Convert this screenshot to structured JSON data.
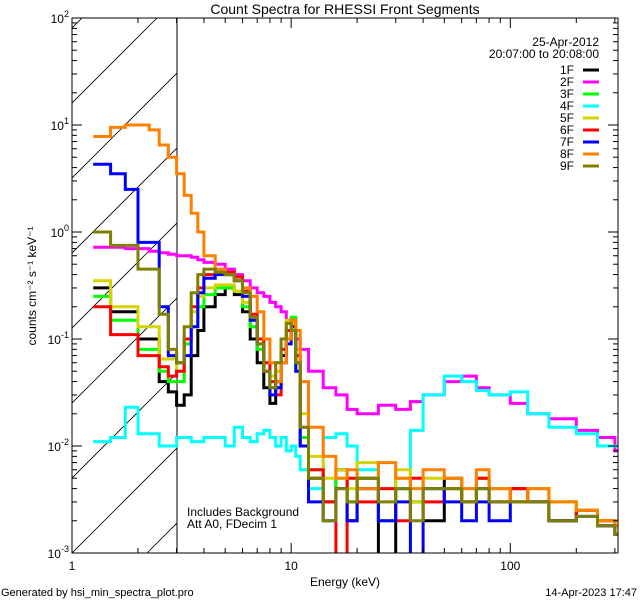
{
  "chart_data": {
    "type": "line",
    "title": "Count Spectra for RHESSI Front Segments",
    "xlabel": "Energy (keV)",
    "ylabel": "counts cm⁻² s⁻¹ keV⁻¹",
    "xscale": "log",
    "yscale": "log",
    "xlim": [
      1,
      310
    ],
    "ylim": [
      0.001,
      100
    ],
    "x_ticks": [
      "1",
      "10",
      "100"
    ],
    "y_ticks": [
      {
        "base": "10",
        "exp": "-3"
      },
      {
        "base": "10",
        "exp": "-2"
      },
      {
        "base": "10",
        "exp": "-1"
      },
      {
        "base": "10",
        "exp": "0"
      },
      {
        "base": "10",
        "exp": "1"
      },
      {
        "base": "10",
        "exp": "2"
      }
    ],
    "date": "25-Apr-2012",
    "time_range": "20:07:00 to 20:08:00",
    "annotations": [
      "Includes Background",
      "Att A0, FDecim 1"
    ],
    "excluded_region_keV": [
      1,
      3
    ],
    "legend_position": "top-right",
    "energy": [
      1.25,
      1.5,
      1.75,
      2,
      2.25,
      2.5,
      2.75,
      3,
      3.25,
      3.5,
      3.75,
      4,
      4.5,
      5,
      5.5,
      6,
      6.5,
      7,
      7.5,
      8,
      8.5,
      9,
      9.5,
      10,
      10.5,
      11,
      12,
      14,
      16,
      18,
      20,
      25,
      30,
      35,
      40,
      50,
      60,
      70,
      80,
      100,
      120,
      150,
      200,
      250,
      300
    ],
    "series": [
      {
        "name": "1F",
        "color": "#000000",
        "values": [
          0.3,
          0.18,
          0.18,
          0.1,
          0.1,
          0.04,
          0.032,
          0.024,
          0.03,
          0.07,
          0.12,
          0.2,
          0.26,
          0.3,
          0.26,
          0.18,
          0.1,
          0.06,
          0.035,
          0.025,
          0.04,
          0.07,
          0.1,
          0.13,
          0.06,
          0.01,
          0.005,
          0.003,
          0.006,
          0.002,
          0.005,
          0.0008,
          0.004,
          0.003,
          0.002,
          0.005,
          0.003,
          0.004,
          0.003,
          0.004,
          0.003,
          0.002,
          0.0025,
          0.0018,
          0.0015
        ]
      },
      {
        "name": "2F",
        "color": "#ff00ff",
        "values": [
          0.72,
          0.72,
          0.7,
          0.7,
          0.66,
          0.64,
          0.62,
          0.6,
          0.6,
          0.58,
          0.55,
          0.52,
          0.5,
          0.45,
          0.4,
          0.35,
          0.3,
          0.27,
          0.25,
          0.22,
          0.2,
          0.18,
          0.15,
          0.12,
          0.1,
          0.08,
          0.05,
          0.035,
          0.03,
          0.022,
          0.02,
          0.024,
          0.022,
          0.026,
          0.03,
          0.04,
          0.045,
          0.035,
          0.03,
          0.025,
          0.02,
          0.018,
          0.014,
          0.012,
          0.009
        ]
      },
      {
        "name": "3F",
        "color": "#00ff00",
        "values": [
          0.25,
          0.15,
          0.15,
          0.08,
          0.08,
          0.05,
          0.04,
          0.04,
          0.09,
          0.13,
          0.2,
          0.26,
          0.3,
          0.3,
          0.28,
          0.2,
          0.13,
          0.08,
          0.05,
          0.035,
          0.04,
          0.08,
          0.12,
          0.16,
          0.05,
          0.012,
          0.006,
          0.003,
          0.005,
          0.003,
          0.004,
          0.002,
          0.005,
          0.003,
          0.004,
          0.004,
          0.003,
          0.005,
          0.004,
          0.003,
          0.004,
          0.003,
          0.0025,
          0.002,
          0.0018
        ]
      },
      {
        "name": "4F",
        "color": "#00ffff",
        "values": [
          0.011,
          0.012,
          0.023,
          0.013,
          0.013,
          0.01,
          0.01,
          0.012,
          0.012,
          0.011,
          0.011,
          0.012,
          0.012,
          0.01,
          0.015,
          0.012,
          0.011,
          0.013,
          0.014,
          0.012,
          0.01,
          0.012,
          0.009,
          0.01,
          0.008,
          0.006,
          0.004,
          0.012,
          0.013,
          0.01,
          0.006,
          0.004,
          0.004,
          0.014,
          0.03,
          0.045,
          0.04,
          0.033,
          0.03,
          0.032,
          0.02,
          0.015,
          0.013,
          0.01,
          0.01
        ]
      },
      {
        "name": "5F",
        "color": "#d4d400",
        "values": [
          0.35,
          0.2,
          0.2,
          0.13,
          0.13,
          0.065,
          0.065,
          0.05,
          0.1,
          0.18,
          0.25,
          0.3,
          0.32,
          0.32,
          0.28,
          0.22,
          0.15,
          0.1,
          0.06,
          0.045,
          0.05,
          0.1,
          0.15,
          0.14,
          0.08,
          0.02,
          0.008,
          0.005,
          0.006,
          0.004,
          0.007,
          0.004,
          0.006,
          0.003,
          0.005,
          0.005,
          0.004,
          0.005,
          0.004,
          0.003,
          0.004,
          0.003,
          0.0025,
          0.002,
          0.002
        ]
      },
      {
        "name": "6F",
        "color": "#ff0000",
        "values": [
          0.2,
          0.11,
          0.11,
          0.07,
          0.07,
          0.055,
          0.045,
          0.05,
          0.1,
          0.2,
          0.3,
          0.4,
          0.42,
          0.42,
          0.38,
          0.28,
          0.17,
          0.1,
          0.06,
          0.04,
          0.03,
          0.08,
          0.12,
          0.15,
          0.07,
          0.015,
          0.006,
          0.003,
          0.0008,
          0.005,
          0.003,
          0.004,
          0.002,
          0.005,
          0.003,
          0.004,
          0.003,
          0.005,
          0.003,
          0.004,
          0.003,
          0.002,
          0.0025,
          0.002,
          0.0015
        ]
      },
      {
        "name": "7F",
        "color": "#0000ff",
        "values": [
          4.3,
          3.5,
          2.5,
          0.8,
          0.8,
          0.2,
          0.07,
          0.06,
          0.07,
          0.13,
          0.27,
          0.37,
          0.4,
          0.4,
          0.35,
          0.25,
          0.15,
          0.09,
          0.05,
          0.03,
          0.035,
          0.06,
          0.09,
          0.12,
          0.05,
          0.01,
          0.003,
          0.002,
          0.004,
          0.002,
          0.004,
          0.002,
          0.003,
          0.0008,
          0.004,
          0.003,
          0.002,
          0.003,
          0.002,
          0.003,
          0.003,
          0.002,
          0.0022,
          0.0018,
          0.0015
        ]
      },
      {
        "name": "8F",
        "color": "#ff8000",
        "values": [
          7.8,
          9.5,
          10,
          10,
          9,
          6.5,
          5,
          3.5,
          2.2,
          1.5,
          1,
          0.6,
          0.45,
          0.4,
          0.35,
          0.3,
          0.25,
          0.18,
          0.1,
          0.06,
          0.04,
          0.06,
          0.1,
          0.15,
          0.12,
          0.04,
          0.015,
          0.008,
          0.005,
          0.006,
          0.004,
          0.007,
          0.005,
          0.004,
          0.006,
          0.005,
          0.004,
          0.006,
          0.004,
          0.003,
          0.004,
          0.003,
          0.0025,
          0.002,
          0.0018
        ]
      },
      {
        "name": "9F",
        "color": "#808000",
        "values": [
          1.0,
          0.75,
          0.75,
          0.45,
          0.45,
          0.17,
          0.08,
          0.06,
          0.13,
          0.27,
          0.4,
          0.45,
          0.42,
          0.4,
          0.35,
          0.27,
          0.16,
          0.09,
          0.05,
          0.035,
          0.06,
          0.1,
          0.14,
          0.12,
          0.06,
          0.015,
          0.005,
          0.002,
          0.004,
          0.003,
          0.005,
          0.003,
          0.004,
          0.002,
          0.004,
          0.004,
          0.003,
          0.004,
          0.003,
          0.003,
          0.003,
          0.002,
          0.0022,
          0.0018,
          0.0015
        ]
      }
    ]
  },
  "footer": {
    "generator": "Generated by hsi_min_spectra_plot.pro",
    "timestamp": "14-Apr-2023 17:47"
  }
}
